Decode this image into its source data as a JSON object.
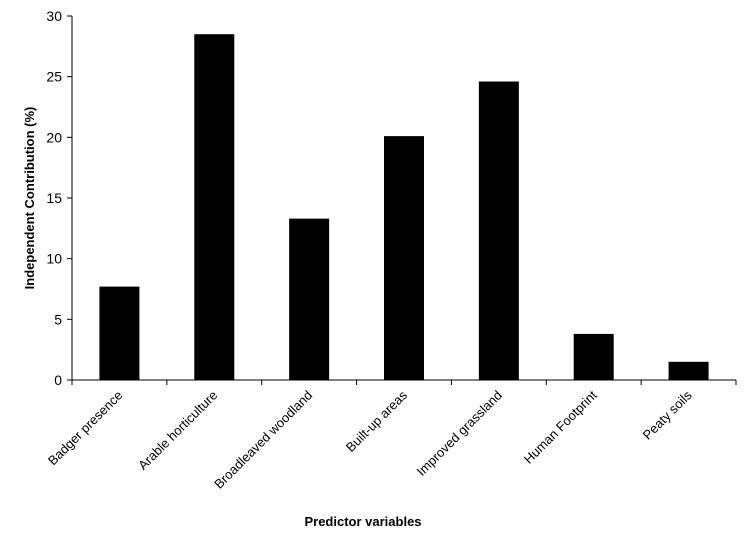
{
  "chart_data": {
    "type": "bar",
    "title": "",
    "xlabel": "Predictor variables",
    "ylabel": "Independent Contribution (%)",
    "ylim": [
      0,
      30
    ],
    "yticks": [
      0,
      5,
      10,
      15,
      20,
      25,
      30
    ],
    "grid": false,
    "legend": "none",
    "categories": [
      "Badger presence",
      "Arable horticulture",
      "Broadleaved woodland",
      "Built-up areas",
      "Improved grassland",
      "Human Footprint",
      "Peaty soils"
    ],
    "values": [
      7.7,
      28.5,
      13.3,
      20.1,
      24.6,
      3.8,
      1.5
    ],
    "bar_color": "#000000"
  }
}
